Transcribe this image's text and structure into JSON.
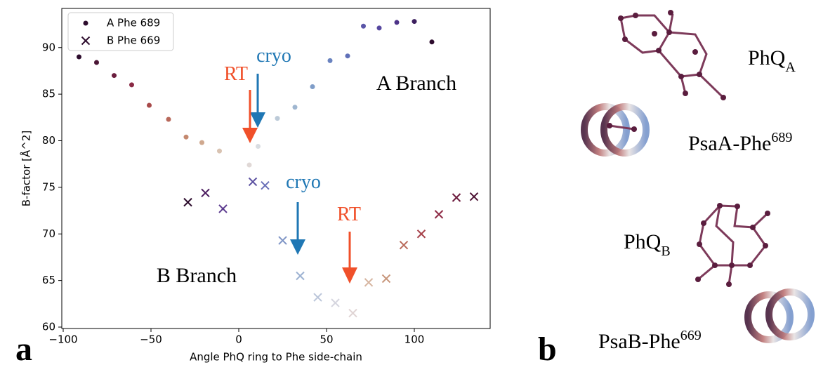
{
  "chart_data": {
    "type": "scatter",
    "xlabel": "Angle PhQ ring to Phe side-chain",
    "ylabel": "B-factor [Å^2]",
    "xlim": [
      -100.8,
      143.2
    ],
    "ylim": [
      59.85,
      94.2
    ],
    "xticks": [
      {
        "value": -100,
        "label": "−100"
      },
      {
        "value": -50,
        "label": "−50"
      },
      0,
      50,
      100
    ],
    "yticks": [
      60,
      65,
      70,
      75,
      80,
      85,
      90
    ],
    "legend": "upper left",
    "series": [
      {
        "name": "A Phe 689",
        "marker": "dot",
        "color": "#2d0c2d",
        "x": [
          -91,
          -81,
          -71,
          -61,
          -51,
          -40,
          -30,
          -21,
          -11,
          6,
          11,
          22,
          32,
          42,
          52,
          62,
          71,
          80,
          90,
          100,
          110
        ],
        "values": [
          89,
          88.4,
          87,
          86,
          83.8,
          82.3,
          80.4,
          79.8,
          78.9,
          77.4,
          79.4,
          82.4,
          83.6,
          85.8,
          88.6,
          89.1,
          92.3,
          92.1,
          92.7,
          92.8,
          90.6
        ],
        "colors": [
          "#2d0c2d",
          "#4a1535",
          "#6b1e3e",
          "#8a2a45",
          "#a84a4a",
          "#b8685a",
          "#c4896f",
          "#cfa88e",
          "#d9c3b2",
          "#e0d8d6",
          "#d9dde2",
          "#bccad8",
          "#9fb6d0",
          "#7f9dc8",
          "#6a83c0",
          "#6070b8",
          "#5b56a8",
          "#56479f",
          "#4d3388",
          "#3c1f5e",
          "#2d0c2d"
        ]
      },
      {
        "name": "B Phe 669",
        "marker": "x",
        "color": "#2d0c2d",
        "x": [
          -29,
          -19,
          -9,
          8,
          15,
          25,
          35,
          45,
          55,
          65,
          74,
          84,
          94,
          104,
          114,
          124,
          134
        ],
        "values": [
          73.4,
          74.4,
          72.7,
          75.6,
          75.2,
          69.3,
          65.5,
          63.2,
          62.6,
          61.5,
          64.8,
          65.2,
          68.8,
          70,
          72.1,
          73.9,
          74
        ],
        "colors": [
          "#2d0c2d",
          "#4a1a5e",
          "#5b3a8e",
          "#5a4fa0",
          "#6a70b8",
          "#7f95c6",
          "#9db2d2",
          "#bcc6da",
          "#d6d6df",
          "#e0d4d4",
          "#d6b5a0",
          "#c7957a",
          "#b96a5a",
          "#a8444c",
          "#8e2a45",
          "#6e1e40",
          "#4f1535"
        ]
      }
    ],
    "annotations": {
      "cryo_a": "cryo",
      "rt_a": "RT",
      "cryo_b": "cryo",
      "rt_b": "RT",
      "a_branch": "A Branch",
      "b_branch": "B Branch"
    },
    "panel_a": "a",
    "panel_b": "b"
  },
  "structure_labels": {
    "phq_a": {
      "base": "PhQ",
      "sub": "A"
    },
    "psaa": {
      "base": "PsaA-Phe",
      "sup": "689"
    },
    "phq_b": {
      "base": "PhQ",
      "sub": "B"
    },
    "psab": {
      "base": "PsaB-Phe",
      "sup": "669"
    }
  }
}
